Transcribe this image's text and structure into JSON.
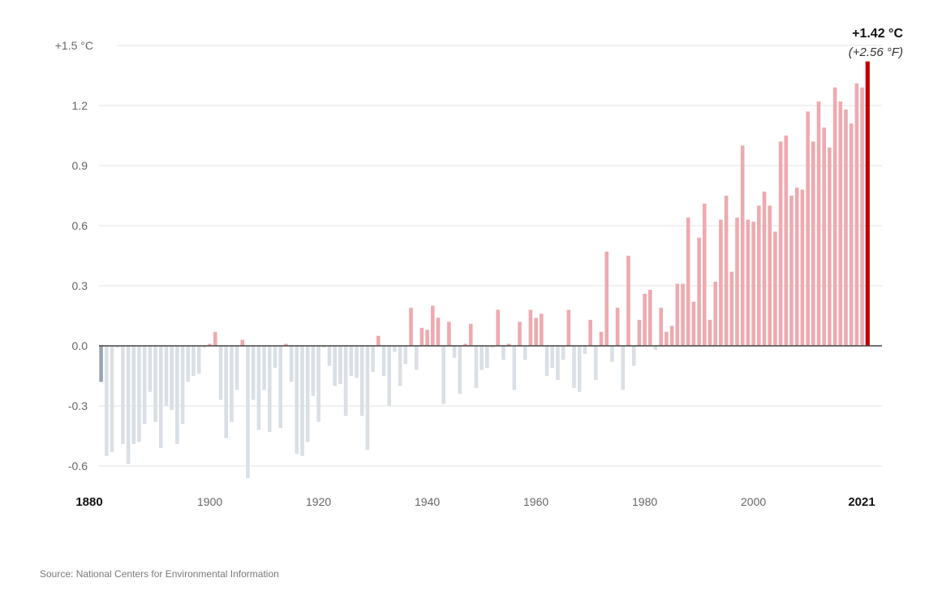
{
  "chart_data": {
    "type": "bar",
    "ylim": [
      -0.7,
      1.5
    ],
    "yticks": [
      {
        "value": 1.5,
        "label": "+1.5 °C"
      },
      {
        "value": 1.2,
        "label": "1.2"
      },
      {
        "value": 0.9,
        "label": "0.9"
      },
      {
        "value": 0.6,
        "label": "0.6"
      },
      {
        "value": 0.3,
        "label": "0.3"
      },
      {
        "value": 0.0,
        "label": "0.0"
      },
      {
        "value": -0.3,
        "label": "-0.3"
      },
      {
        "value": -0.6,
        "label": "-0.6"
      }
    ],
    "xticks": [
      {
        "year": 1880,
        "label": "1880",
        "bold": true
      },
      {
        "year": 1900,
        "label": "1900",
        "bold": false
      },
      {
        "year": 1920,
        "label": "1920",
        "bold": false
      },
      {
        "year": 1940,
        "label": "1940",
        "bold": false
      },
      {
        "year": 1960,
        "label": "1960",
        "bold": false
      },
      {
        "year": 1980,
        "label": "1980",
        "bold": false
      },
      {
        "year": 2000,
        "label": "2000",
        "bold": false
      },
      {
        "year": 2021,
        "label": "2021",
        "bold": true
      }
    ],
    "x": [
      1880,
      1881,
      1882,
      1883,
      1884,
      1885,
      1886,
      1887,
      1888,
      1889,
      1890,
      1891,
      1892,
      1893,
      1894,
      1895,
      1896,
      1897,
      1898,
      1899,
      1900,
      1901,
      1902,
      1903,
      1904,
      1905,
      1906,
      1907,
      1908,
      1909,
      1910,
      1911,
      1912,
      1913,
      1914,
      1915,
      1916,
      1917,
      1918,
      1919,
      1920,
      1921,
      1922,
      1923,
      1924,
      1925,
      1926,
      1927,
      1928,
      1929,
      1930,
      1931,
      1932,
      1933,
      1934,
      1935,
      1936,
      1937,
      1938,
      1939,
      1940,
      1941,
      1942,
      1943,
      1944,
      1945,
      1946,
      1947,
      1948,
      1949,
      1950,
      1951,
      1952,
      1953,
      1954,
      1955,
      1956,
      1957,
      1958,
      1959,
      1960,
      1961,
      1962,
      1963,
      1964,
      1965,
      1966,
      1967,
      1968,
      1969,
      1970,
      1971,
      1972,
      1973,
      1974,
      1975,
      1976,
      1977,
      1978,
      1979,
      1980,
      1981,
      1982,
      1983,
      1984,
      1985,
      1986,
      1987,
      1988,
      1989,
      1990,
      1991,
      1992,
      1993,
      1994,
      1995,
      1996,
      1997,
      1998,
      1999,
      2000,
      2001,
      2002,
      2003,
      2004,
      2005,
      2006,
      2007,
      2008,
      2009,
      2010,
      2011,
      2012,
      2013,
      2014,
      2015,
      2016,
      2017,
      2018,
      2019,
      2020,
      2021
    ],
    "values": [
      -0.18,
      -0.55,
      -0.53,
      -0.01,
      -0.49,
      -0.59,
      -0.49,
      -0.48,
      -0.39,
      -0.23,
      -0.38,
      -0.51,
      -0.3,
      -0.32,
      -0.49,
      -0.39,
      -0.18,
      -0.15,
      -0.14,
      -0.01,
      0.01,
      0.07,
      -0.27,
      -0.46,
      -0.38,
      -0.22,
      0.03,
      -0.66,
      -0.27,
      -0.42,
      -0.22,
      -0.43,
      -0.11,
      -0.41,
      0.01,
      -0.18,
      -0.54,
      -0.55,
      -0.48,
      -0.25,
      -0.38,
      -0.01,
      -0.1,
      -0.2,
      -0.19,
      -0.35,
      -0.15,
      -0.16,
      -0.35,
      -0.52,
      -0.13,
      0.05,
      -0.15,
      -0.3,
      -0.03,
      -0.2,
      -0.09,
      0.19,
      -0.12,
      0.09,
      0.08,
      0.2,
      0.14,
      -0.29,
      0.12,
      -0.06,
      -0.24,
      0.01,
      0.11,
      -0.21,
      -0.12,
      -0.11,
      -0.01,
      0.18,
      -0.07,
      0.01,
      -0.22,
      0.12,
      -0.07,
      0.18,
      0.14,
      0.16,
      -0.15,
      -0.11,
      -0.17,
      -0.07,
      0.18,
      -0.21,
      -0.23,
      -0.04,
      0.13,
      -0.17,
      0.07,
      0.47,
      -0.08,
      0.19,
      -0.22,
      0.45,
      -0.1,
      0.13,
      0.26,
      0.28,
      -0.02,
      0.19,
      0.07,
      0.1,
      0.31,
      0.31,
      0.64,
      0.22,
      0.54,
      0.71,
      0.13,
      0.32,
      0.63,
      0.75,
      0.37,
      0.64,
      1.0,
      0.63,
      0.62,
      0.7,
      0.77,
      0.7,
      0.57,
      1.02,
      1.05,
      0.75,
      0.79,
      0.78,
      1.17,
      1.02,
      1.22,
      1.09,
      0.99,
      1.29,
      1.22,
      1.18,
      1.11,
      1.31,
      1.29,
      1.42
    ],
    "highlight": {
      "year": 2021,
      "label": "+1.42 °C",
      "sublabel": "(+2.56 °F)"
    },
    "colors": {
      "positive": "#eeaaaf",
      "negative": "#d9dfe5",
      "highlight": "#c00000",
      "first": "#9aa5b1"
    }
  },
  "source": "Source: National Centers for Environmental Information"
}
